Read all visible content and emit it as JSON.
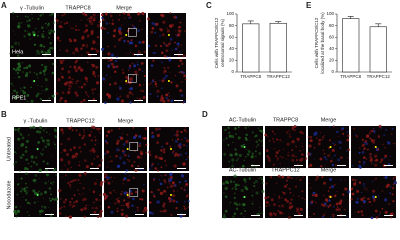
{
  "panel_a": {
    "label": "A",
    "columns": [
      "γ -Tubulin",
      "TRAPPC8",
      "Merge"
    ],
    "rows": [
      "Hela",
      "RPE1"
    ]
  },
  "panel_b": {
    "label": "B",
    "columns": [
      "γ -Tubulin",
      "TRAPPC12",
      "Merge"
    ],
    "rows": [
      "Untreated",
      "Nocodazole"
    ]
  },
  "panel_d": {
    "label": "D",
    "rows": [
      {
        "columns": [
          "AC-Tubulin",
          "TRAPPC8",
          "Merge"
        ]
      },
      {
        "columns": [
          "AC-Tubulin",
          "TRAPPC12",
          "Merge"
        ]
      }
    ]
  },
  "chart_data": [
    {
      "type": "bar",
      "label": "C",
      "ylabel": [
        "Cells with TRAPPC8/C12",
        "centrosomal signals (%)"
      ],
      "categories": [
        "TRAPPC8",
        "TRAPPC12"
      ],
      "values": [
        83,
        84
      ],
      "errors": [
        5,
        3
      ],
      "color": "#ffffff",
      "ylim": [
        0,
        100
      ],
      "yticks": [
        0,
        20,
        40,
        60,
        80,
        100
      ]
    },
    {
      "type": "bar",
      "label": "E",
      "ylabel": [
        "Cells with TRAPPC8/C12",
        "localized at the basal body (%)"
      ],
      "categories": [
        "TRAPPC8",
        "TRAPPC12"
      ],
      "values": [
        92,
        78
      ],
      "errors": [
        4,
        5
      ],
      "color": "#ffffff",
      "ylim": [
        0,
        100
      ],
      "yticks": [
        0,
        20,
        40,
        60,
        80,
        100
      ]
    }
  ]
}
